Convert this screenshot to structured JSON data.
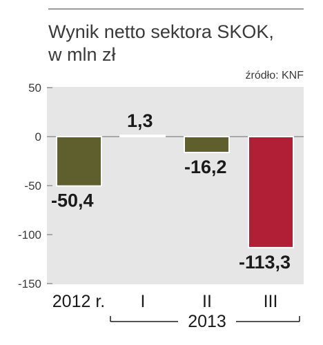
{
  "chart_data": {
    "type": "bar",
    "title": "Wynik netto sektora SKOK,",
    "subtitle": "w mln zł",
    "source": "źródło: KNF",
    "categories": [
      "2012 r.",
      "I",
      "II",
      "III"
    ],
    "values": [
      -50.4,
      1.3,
      -16.2,
      -113.3
    ],
    "data_labels": [
      "-50,4",
      "1,3",
      "-16,2",
      "-113,3"
    ],
    "group_label": "2013",
    "yticks": [
      50,
      0,
      -50,
      -100,
      -150
    ],
    "ylim": [
      -150,
      50
    ],
    "grid": false,
    "colors": {
      "negative": "#5e5f2c",
      "highlight": "#b01f35",
      "positive": "#ffffff",
      "plot_bg": "#e6e6e6"
    },
    "highlight_index": 3
  }
}
